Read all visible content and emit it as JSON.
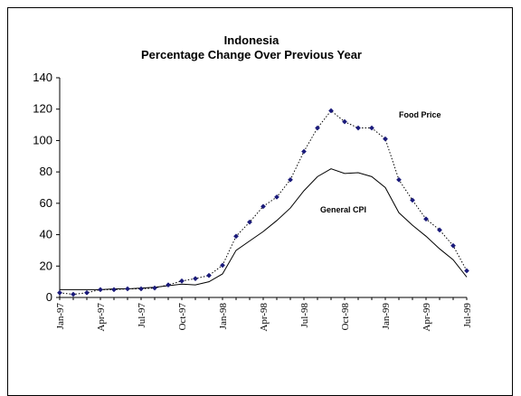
{
  "chart_data": {
    "type": "line",
    "title": "Indonesia",
    "subtitle": "Percentage Change Over Previous Year",
    "xlabel": "",
    "ylabel": "",
    "ylim": [
      0,
      140
    ],
    "yticks": [
      0,
      20,
      40,
      60,
      80,
      100,
      120,
      140
    ],
    "grid": false,
    "legend": "none",
    "x": [
      "Jan-97",
      "Feb-97",
      "Mar-97",
      "Apr-97",
      "May-97",
      "Jun-97",
      "Jul-97",
      "Aug-97",
      "Sep-97",
      "Oct-97",
      "Nov-97",
      "Dec-97",
      "Jan-98",
      "Feb-98",
      "Mar-98",
      "Apr-98",
      "May-98",
      "Jun-98",
      "Jul-98",
      "Aug-98",
      "Sep-98",
      "Oct-98",
      "Nov-98",
      "Dec-98",
      "Jan-99",
      "Feb-99",
      "Mar-99",
      "Apr-99",
      "May-99",
      "Jun-99",
      "Jul-99"
    ],
    "x_tick_labels": [
      "Jan-97",
      "Apr-97",
      "Jul-97",
      "Oct-97",
      "Jan-98",
      "Apr-98",
      "Jul-98",
      "Oct-98",
      "Jan-99",
      "Apr-99",
      "Jul-99"
    ],
    "series": [
      {
        "name": "Food Price",
        "style": "dotted line with diamond markers",
        "color": "#1a1a7a",
        "values": [
          3,
          2,
          3,
          5,
          5,
          5.5,
          5.5,
          6,
          8,
          10.5,
          12,
          14,
          20.5,
          39,
          48,
          58,
          64,
          75,
          93,
          108,
          119,
          112,
          108,
          108,
          101,
          75,
          62,
          50,
          43,
          33,
          17
        ]
      },
      {
        "name": "General CPI",
        "style": "solid line",
        "color": "#000000",
        "values": [
          5,
          5,
          5,
          5,
          5.5,
          5.5,
          6,
          6.5,
          7.5,
          8.5,
          8,
          10,
          15,
          30,
          36,
          42,
          49,
          57,
          68,
          77,
          82,
          79,
          79.5,
          77,
          70,
          54,
          46,
          39,
          31,
          24,
          13
        ]
      }
    ]
  }
}
